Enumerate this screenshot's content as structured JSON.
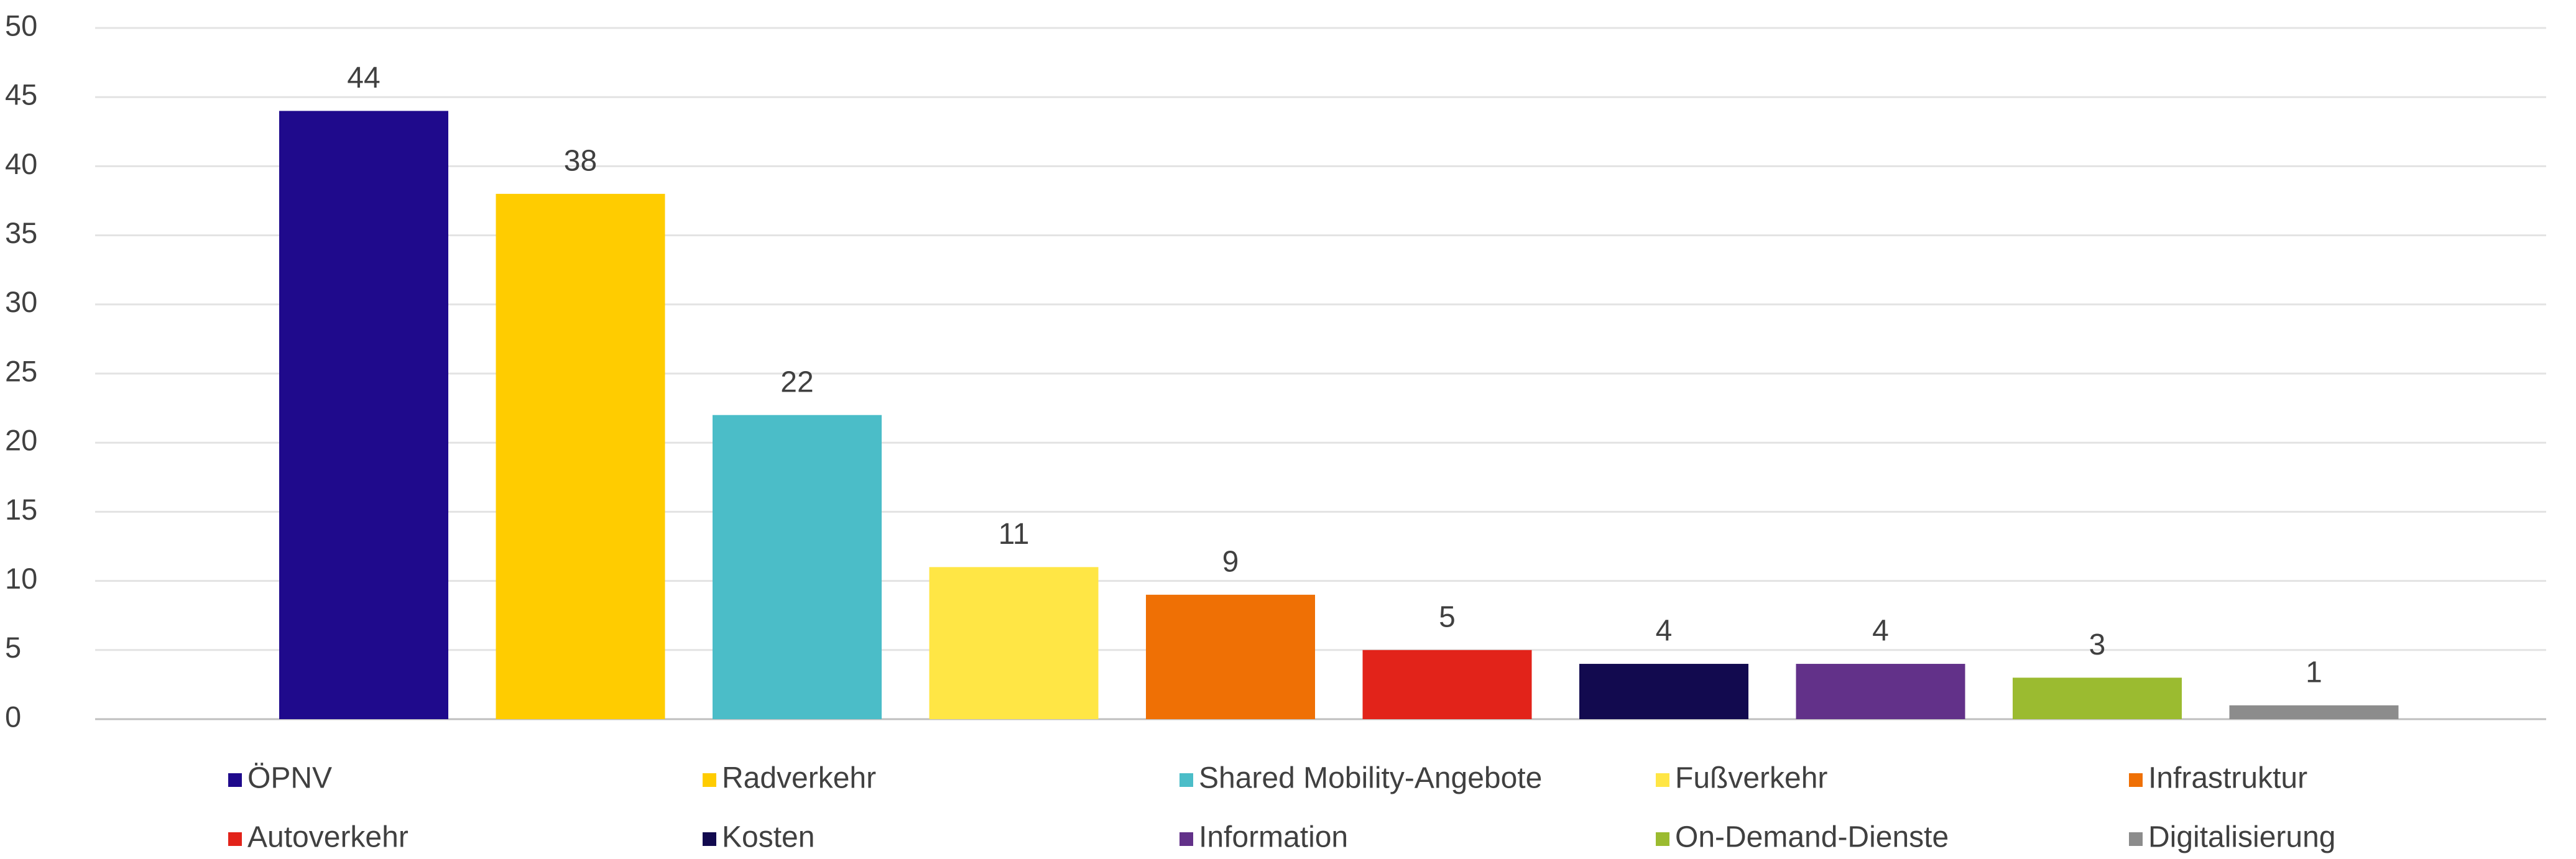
{
  "chart_data": {
    "type": "bar",
    "series": [
      {
        "name": "ÖPNV",
        "color": "#1f0a8c",
        "values": [
          44
        ]
      },
      {
        "name": "Radverkehr",
        "color": "#ffcc00",
        "values": [
          38
        ]
      },
      {
        "name": "Shared Mobility-Angebote",
        "color": "#4bbdc8",
        "values": [
          22
        ]
      },
      {
        "name": "Fußverkehr",
        "color": "#ffe645",
        "values": [
          11
        ]
      },
      {
        "name": "Infrastruktur",
        "color": "#ef7005",
        "values": [
          9
        ]
      },
      {
        "name": "Autoverkehr",
        "color": "#e2231a",
        "values": [
          5
        ]
      },
      {
        "name": "Kosten",
        "color": "#120a4f",
        "values": [
          4
        ]
      },
      {
        "name": "Information",
        "color": "#623189",
        "values": [
          4
        ]
      },
      {
        "name": "On-Demand-Dienste",
        "color": "#9bbb30",
        "values": [
          3
        ]
      },
      {
        "name": "Digitalisierung",
        "color": "#8c8c8c",
        "values": [
          1
        ]
      }
    ],
    "ylim": [
      0,
      50
    ],
    "yticks": [
      0,
      5,
      10,
      15,
      20,
      25,
      30,
      35,
      40,
      45,
      50
    ],
    "grid": true,
    "legend": "bottom"
  }
}
